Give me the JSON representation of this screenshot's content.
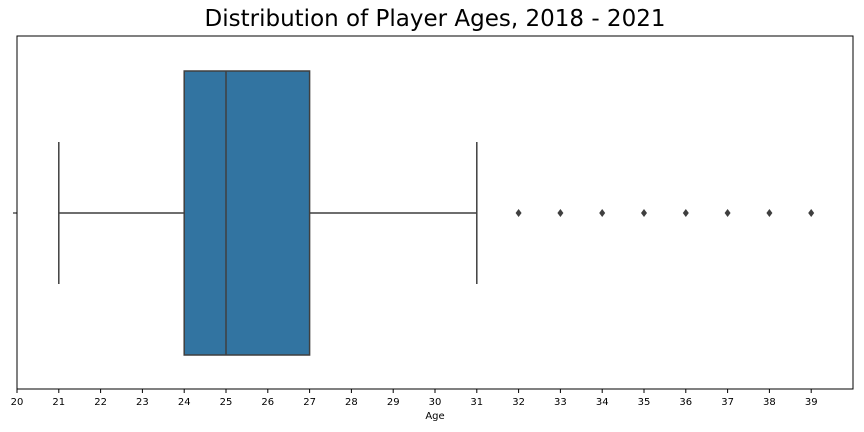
{
  "chart_data": {
    "type": "box",
    "title": "Distribution of Player Ages, 2018 - 2021",
    "xlabel": "Age",
    "ylabel": "",
    "xlim": [
      20,
      40
    ],
    "xticks": [
      20,
      21,
      22,
      23,
      24,
      25,
      26,
      27,
      28,
      29,
      30,
      31,
      32,
      33,
      34,
      35,
      36,
      37,
      38,
      39
    ],
    "grid": false,
    "orientation": "horizontal",
    "box": {
      "whisker_low": 21,
      "q1": 24,
      "median": 25,
      "q3": 27,
      "whisker_high": 31
    },
    "outliers": [
      32,
      33,
      34,
      35,
      36,
      37,
      38,
      39
    ],
    "colors": {
      "box_fill": "#3274a1",
      "line": "#3f3f3f",
      "outlier": "#3f3f3f"
    }
  }
}
